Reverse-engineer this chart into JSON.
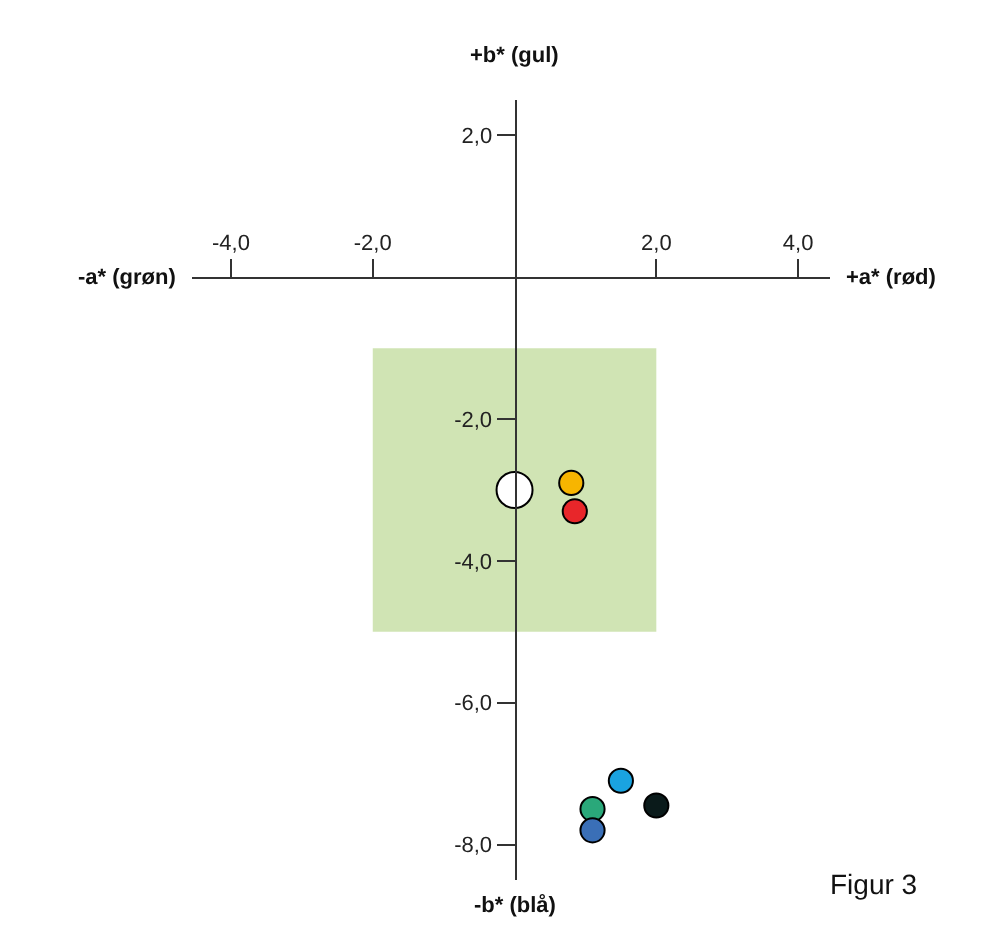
{
  "chart_data": {
    "type": "bubble",
    "annotations": [
      "+b* (gul)",
      "-b* (blå)",
      "-a* (grøn)",
      "+a* (rød)",
      "Figur 3"
    ],
    "xlim": [
      -4.55,
      4.45
    ],
    "ylim": [
      -8.5,
      2.5
    ],
    "xticks": [
      {
        "value": -4,
        "label": "-4,0"
      },
      {
        "value": -2,
        "label": "-2,0"
      },
      {
        "value": 2,
        "label": "2,0"
      },
      {
        "value": 4,
        "label": "4,0"
      }
    ],
    "yticks": [
      {
        "value": 2,
        "label": "2,0"
      },
      {
        "value": -2,
        "label": "-2,0"
      },
      {
        "value": -4,
        "label": "-4,0"
      },
      {
        "value": -6,
        "label": "-6,0"
      },
      {
        "value": -8,
        "label": "-8,0"
      }
    ],
    "series": [
      {
        "type": "bar",
        "color": "#d0e4b4",
        "x": [
          0
        ],
        "values": [
          4
        ],
        "base": [
          -5
        ]
      },
      {
        "marker": "circle",
        "x": [
          0,
          0.8,
          0.85,
          1.5,
          2.0,
          1.1,
          1.1
        ],
        "values": [
          -3.0,
          -2.9,
          -3.3,
          -7.1,
          -7.45,
          -7.5,
          -7.8
        ],
        "sizes": [
          1,
          0.45,
          0.45,
          0.45,
          0.45,
          0.45,
          0.45
        ],
        "colors": [
          "#ffffff",
          "#f7b500",
          "#e8262a",
          "#1aa3e0",
          "#0a1a1a",
          "#2aa87a",
          "#3a6fb7"
        ]
      }
    ]
  }
}
